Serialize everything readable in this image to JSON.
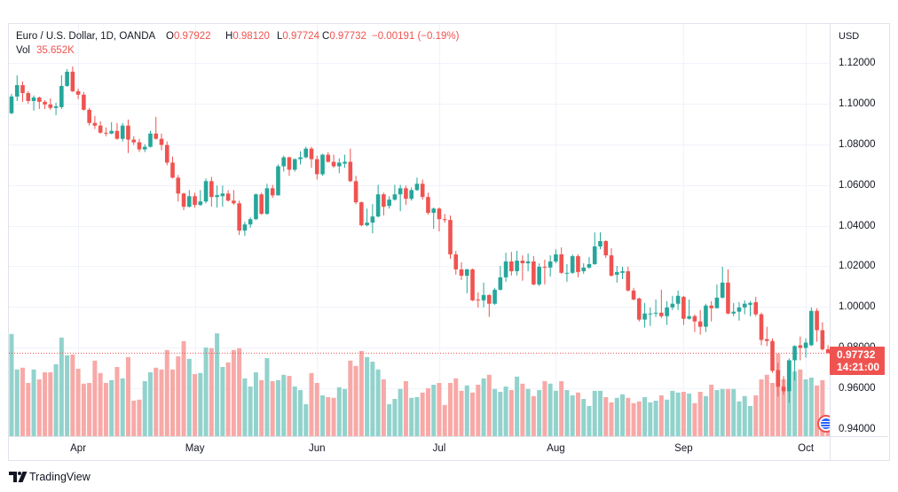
{
  "legend": {
    "symbol": "Euro / U.S. Dollar, 1D, OANDA",
    "open_label": "O",
    "open": "0.97922",
    "high_label": "H",
    "high": "0.98120",
    "low_label": "L",
    "low": "0.97724",
    "close_label": "C",
    "close": "0.97732",
    "change": "−0.00191 (−0.19%)",
    "vol_label": "Vol",
    "vol": "35.652K"
  },
  "last_price_label": {
    "value": "0.97732",
    "countdown": "14:21:00"
  },
  "footer": {
    "brand": "TradingView"
  },
  "icons": {
    "events": "economic-events-icon",
    "logo": "tradingview-logo-icon"
  },
  "colors": {
    "up": "#26a69a",
    "down": "#ef5350",
    "up_volume": "#92d2cc",
    "down_volume": "#f7a9a7",
    "grid": "#f0f3fa",
    "text": "#131722"
  },
  "chart_data": {
    "type": "candlestick",
    "title": "Euro / U.S. Dollar, 1D, OANDA",
    "xlabel": "",
    "ylabel": "USD",
    "ylim": [
      0.9365,
      1.1392
    ],
    "xlim": [
      -0.48,
      147.3
    ],
    "volume_ylim": [
      0,
      1162.5
    ],
    "volume_unit": "K",
    "grid": true,
    "last_price": 0.97732,
    "yticks": [
      "1.12000",
      "1.10000",
      "1.08000",
      "1.06000",
      "1.04000",
      "1.02000",
      "1.00000",
      "0.98000",
      "0.96000",
      "0.94000"
    ],
    "xticks": [
      {
        "label": "Apr",
        "index": 12
      },
      {
        "label": "May",
        "index": 33
      },
      {
        "label": "Jun",
        "index": 55
      },
      {
        "label": "Jul",
        "index": 77
      },
      {
        "label": "Aug",
        "index": 98
      },
      {
        "label": "Sep",
        "index": 121
      },
      {
        "label": "Oct",
        "index": 143
      }
    ],
    "ohlc_order": [
      "open",
      "high",
      "low",
      "close"
    ],
    "candles": [
      [
        1.0953,
        1.1048,
        1.0948,
        1.1035
      ],
      [
        1.1035,
        1.1139,
        1.1013,
        1.1091
      ],
      [
        1.1091,
        1.1109,
        1.1009,
        1.1052
      ],
      [
        1.1052,
        1.1061,
        1.1,
        1.1013
      ],
      [
        1.1013,
        1.104,
        1.0966,
        1.103
      ],
      [
        1.103,
        1.1035,
        1.0974,
        1.1009
      ],
      [
        1.1009,
        1.1017,
        1.0974,
        1.0996
      ],
      [
        1.0996,
        1.1026,
        1.097,
        1.0979
      ],
      [
        1.0979,
        1.1005,
        1.0944,
        1.0987
      ],
      [
        1.0983,
        1.1139,
        1.0974,
        1.1087
      ],
      [
        1.1087,
        1.117,
        1.1083,
        1.1157
      ],
      [
        1.1157,
        1.1183,
        1.1057,
        1.1061
      ],
      [
        1.1061,
        1.1074,
        1.1022,
        1.1044
      ],
      [
        1.1044,
        1.1057,
        1.0966,
        1.097
      ],
      [
        1.097,
        1.0979,
        1.0892,
        1.0905
      ],
      [
        1.0905,
        1.094,
        1.0875,
        1.0892
      ],
      [
        1.0892,
        1.0913,
        1.0853,
        1.0857
      ],
      [
        1.0857,
        1.0883,
        1.084,
        1.0853
      ],
      [
        1.0853,
        1.0909,
        1.085,
        1.0866
      ],
      [
        1.0866,
        1.0905,
        1.0823,
        1.0827
      ],
      [
        1.0827,
        1.0905,
        1.0814,
        1.0892
      ],
      [
        1.0892,
        1.0922,
        1.0757,
        1.0823
      ],
      [
        1.0823,
        1.084,
        1.0797,
        1.081
      ],
      [
        1.081,
        1.0827,
        1.0762,
        1.0775
      ],
      [
        1.0775,
        1.0801,
        1.0762,
        1.0788
      ],
      [
        1.0788,
        1.0866,
        1.0784,
        1.0853
      ],
      [
        1.0853,
        1.0935,
        1.0823,
        1.0827
      ],
      [
        1.0827,
        1.0853,
        1.0771,
        1.0797
      ],
      [
        1.0797,
        1.0814,
        1.0697,
        1.071
      ],
      [
        1.071,
        1.074,
        1.0632,
        1.0636
      ],
      [
        1.0636,
        1.0649,
        1.0519,
        1.0558
      ],
      [
        1.0558,
        1.0562,
        1.0476,
        1.0493
      ],
      [
        1.0493,
        1.0575,
        1.0489,
        1.0545
      ],
      [
        1.0545,
        1.0562,
        1.0489,
        1.0502
      ],
      [
        1.0502,
        1.0575,
        1.0497,
        1.0519
      ],
      [
        1.0519,
        1.0632,
        1.051,
        1.0619
      ],
      [
        1.0619,
        1.064,
        1.0493,
        1.0541
      ],
      [
        1.0541,
        1.0597,
        1.0489,
        1.055
      ],
      [
        1.0545,
        1.0597,
        1.0493,
        1.0558
      ],
      [
        1.0558,
        1.0575,
        1.0519,
        1.0523
      ],
      [
        1.0523,
        1.0575,
        1.0502,
        1.051
      ],
      [
        1.051,
        1.0523,
        1.0354,
        1.0376
      ],
      [
        1.0376,
        1.0419,
        1.035,
        1.0406
      ],
      [
        1.0406,
        1.0441,
        1.0389,
        1.0432
      ],
      [
        1.0432,
        1.0558,
        1.0428,
        1.0554
      ],
      [
        1.0554,
        1.0562,
        1.0454,
        1.0458
      ],
      [
        1.0458,
        1.0606,
        1.0454,
        1.0584
      ],
      [
        1.0584,
        1.0601,
        1.0536,
        1.0549
      ],
      [
        1.0549,
        1.0701,
        1.0549,
        1.0692
      ],
      [
        1.0692,
        1.0744,
        1.0666,
        1.0736
      ],
      [
        1.0736,
        1.074,
        1.0645,
        1.0675
      ],
      [
        1.0675,
        1.0731,
        1.0666,
        1.0727
      ],
      [
        1.0727,
        1.0766,
        1.0701,
        1.0736
      ],
      [
        1.0736,
        1.0788,
        1.0731,
        1.0779
      ],
      [
        1.0779,
        1.0788,
        1.0684,
        1.0727
      ],
      [
        1.0727,
        1.0744,
        1.0627,
        1.0653
      ],
      [
        1.0653,
        1.0753,
        1.0645,
        1.0749
      ],
      [
        1.0749,
        1.0762,
        1.071,
        1.0714
      ],
      [
        1.0714,
        1.0749,
        1.0684,
        1.0692
      ],
      [
        1.0692,
        1.0731,
        1.0658,
        1.071
      ],
      [
        1.0705,
        1.0749,
        1.0684,
        1.0714
      ],
      [
        1.0714,
        1.0779,
        1.0614,
        1.0619
      ],
      [
        1.0619,
        1.0645,
        1.0506,
        1.0515
      ],
      [
        1.0515,
        1.0519,
        1.0397,
        1.0402
      ],
      [
        1.0402,
        1.0484,
        1.0397,
        1.0415
      ],
      [
        1.0415,
        1.0506,
        1.0363,
        1.0445
      ],
      [
        1.0445,
        1.0601,
        1.0441,
        1.0554
      ],
      [
        1.0554,
        1.0562,
        1.045,
        1.0493
      ],
      [
        1.0497,
        1.0545,
        1.0484,
        1.0528
      ],
      [
        1.0528,
        1.0601,
        1.0523,
        1.0554
      ],
      [
        1.0554,
        1.0601,
        1.0471,
        1.0584
      ],
      [
        1.0584,
        1.0597,
        1.0502,
        1.0532
      ],
      [
        1.0532,
        1.0588,
        1.0523,
        1.0575
      ],
      [
        1.0575,
        1.0636,
        1.0571,
        1.0606
      ],
      [
        1.0606,
        1.0627,
        1.0528,
        1.0541
      ],
      [
        1.0541,
        1.0562,
        1.0454,
        1.0463
      ],
      [
        1.0463,
        1.0489,
        1.0385,
        1.0484
      ],
      [
        1.0484,
        1.0489,
        1.0372,
        1.0432
      ],
      [
        1.0432,
        1.0458,
        1.0415,
        1.0428
      ],
      [
        1.0428,
        1.045,
        1.0237,
        1.0259
      ],
      [
        1.0259,
        1.0276,
        1.0159,
        1.0185
      ],
      [
        1.0185,
        1.022,
        1.0133,
        1.0154
      ],
      [
        1.0154,
        1.0189,
        1.0068,
        1.0185
      ],
      [
        1.0185,
        1.0189,
        1.0029,
        1.0033
      ],
      [
        1.0037,
        1.0072,
        0.9998,
        1.0033
      ],
      [
        1.0033,
        1.012,
        0.9998,
        1.0059
      ],
      [
        1.0059,
        1.0063,
        0.9951,
        1.0016
      ],
      [
        1.0016,
        1.0094,
        1.0011,
        1.0085
      ],
      [
        1.0085,
        1.0202,
        1.0081,
        1.0146
      ],
      [
        1.0146,
        1.0267,
        1.0124,
        1.0224
      ],
      [
        1.0224,
        1.0271,
        1.0155,
        1.0176
      ],
      [
        1.0176,
        1.0276,
        1.0155,
        1.0228
      ],
      [
        1.0228,
        1.0254,
        1.0129,
        1.0215
      ],
      [
        1.0215,
        1.0263,
        1.0176,
        1.0224
      ],
      [
        1.0224,
        1.025,
        1.0107,
        1.0111
      ],
      [
        1.0111,
        1.0215,
        1.0103,
        1.0198
      ],
      [
        1.0198,
        1.0233,
        1.0111,
        1.0194
      ],
      [
        1.0194,
        1.0254,
        1.015,
        1.0224
      ],
      [
        1.0224,
        1.0284,
        1.0215,
        1.0259
      ],
      [
        1.0259,
        1.0293,
        1.0163,
        1.0168
      ],
      [
        1.0165,
        1.0211,
        1.0124,
        1.0168
      ],
      [
        1.0168,
        1.0259,
        1.0163,
        1.025
      ],
      [
        1.025,
        1.0259,
        1.0146,
        1.0172
      ],
      [
        1.0176,
        1.0215,
        1.0163,
        1.0194
      ],
      [
        1.0194,
        1.0246,
        1.0189,
        1.0211
      ],
      [
        1.0211,
        1.0367,
        1.0207,
        1.0298
      ],
      [
        1.0298,
        1.0367,
        1.0284,
        1.0324
      ],
      [
        1.0324,
        1.0328,
        1.0241,
        1.0254
      ],
      [
        1.0254,
        1.0289,
        1.015,
        1.0154
      ],
      [
        1.0159,
        1.0202,
        1.012,
        1.0172
      ],
      [
        1.0168,
        1.0198,
        1.0137,
        1.0176
      ],
      [
        1.0176,
        1.0198,
        1.0076,
        1.0081
      ],
      [
        1.0081,
        1.0094,
        1.0033,
        1.0037
      ],
      [
        1.0042,
        1.0046,
        0.9929,
        0.9938
      ],
      [
        0.9938,
        1.002,
        0.9899,
        0.9968
      ],
      [
        0.9964,
        0.9998,
        0.9907,
        0.9968
      ],
      [
        0.9968,
        1.0037,
        0.9951,
        0.9972
      ],
      [
        0.9972,
        1.0085,
        0.9946,
        0.9955
      ],
      [
        0.9955,
        1.0029,
        0.9912,
        0.9998
      ],
      [
        0.9998,
        1.0055,
        0.9985,
        1.0016
      ],
      [
        1.0016,
        1.0081,
        0.9985,
        1.0055
      ],
      [
        1.005,
        1.0055,
        0.9912,
        0.9942
      ],
      [
        0.9942,
        1.0037,
        0.9938,
        0.9955
      ],
      [
        0.9955,
        0.9964,
        0.9877,
        0.9929
      ],
      [
        0.9929,
        0.9985,
        0.9864,
        0.9903
      ],
      [
        0.9903,
        1.0016,
        0.9877,
        1.0007
      ],
      [
        1.0007,
        1.0029,
        0.9929,
        0.9994
      ],
      [
        0.9994,
        1.0111,
        0.9994,
        1.0046
      ],
      [
        1.0046,
        1.0198,
        1.0042,
        1.012
      ],
      [
        1.012,
        1.0185,
        0.9964,
        0.9968
      ],
      [
        0.9968,
        1.002,
        0.9955,
        0.9977
      ],
      [
        0.9977,
        1.0024,
        0.9933,
        0.9998
      ],
      [
        0.9998,
        1.0033,
        0.9964,
        1.0016
      ],
      [
        1.0011,
        1.0029,
        0.9955,
        1.002
      ],
      [
        1.0024,
        1.005,
        0.9955,
        0.9964
      ],
      [
        0.9964,
        0.9972,
        0.9812,
        0.9838
      ],
      [
        0.9842,
        0.9903,
        0.9808,
        0.9833
      ],
      [
        0.9833,
        0.9846,
        0.9677,
        0.9686
      ],
      [
        0.969,
        0.9725,
        0.956,
        0.9608
      ],
      [
        0.9608,
        0.966,
        0.9569,
        0.9586
      ],
      [
        0.9586,
        0.9747,
        0.953,
        0.9738
      ],
      [
        0.9738,
        0.9812,
        0.9638,
        0.9808
      ],
      [
        0.9812,
        0.9855,
        0.9738,
        0.9799
      ],
      [
        0.9799,
        0.9846,
        0.9751,
        0.9825
      ],
      [
        0.9812,
        0.9998,
        0.9808,
        0.9981
      ],
      [
        0.9981,
        0.9994,
        0.9829,
        0.9886
      ],
      [
        0.9886,
        0.9925,
        0.9786,
        0.9792
      ],
      [
        0.97922,
        0.9812,
        0.97724,
        0.97732
      ]
    ],
    "volume": [
      288,
      188,
      193,
      150,
      188,
      160,
      180,
      180,
      203,
      278,
      228,
      230,
      190,
      148,
      150,
      213,
      178,
      150,
      158,
      195,
      163,
      223,
      100,
      103,
      155,
      180,
      193,
      188,
      243,
      188,
      225,
      268,
      218,
      175,
      178,
      250,
      248,
      290,
      195,
      208,
      243,
      248,
      163,
      140,
      180,
      158,
      220,
      155,
      158,
      173,
      170,
      140,
      130,
      90,
      178,
      150,
      115,
      110,
      108,
      138,
      133,
      213,
      198,
      240,
      223,
      210,
      188,
      160,
      90,
      105,
      133,
      155,
      108,
      110,
      123,
      135,
      145,
      150,
      88,
      150,
      163,
      128,
      143,
      123,
      145,
      163,
      173,
      133,
      125,
      140,
      130,
      168,
      148,
      133,
      113,
      130,
      155,
      148,
      128,
      155,
      130,
      115,
      123,
      105,
      85,
      128,
      128,
      110,
      95,
      108,
      118,
      108,
      93,
      98,
      110,
      95,
      100,
      115,
      103,
      128,
      123,
      125,
      120,
      93,
      125,
      113,
      145,
      130,
      133,
      133,
      133,
      98,
      113,
      85,
      115,
      160,
      173,
      150,
      233,
      160,
      213,
      183,
      188,
      160,
      165,
      143,
      158,
      35.652
    ]
  }
}
